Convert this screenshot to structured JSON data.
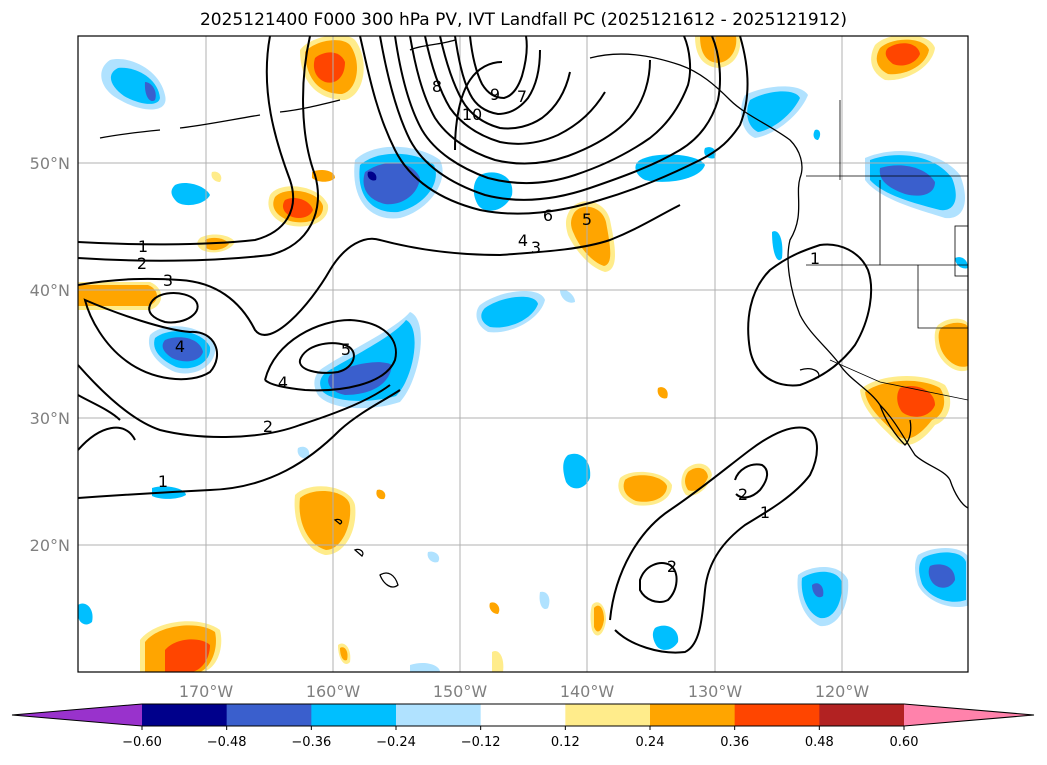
{
  "title": "2025121400 F000 300 hPa PV, IVT Landfall PC (2025121612 - 2025121912)",
  "map": {
    "lat_labels": [
      "50°N",
      "40°N",
      "30°N",
      "20°N"
    ],
    "lon_labels": [
      "170°W",
      "160°W",
      "150°W",
      "140°W",
      "130°W",
      "120°W"
    ]
  },
  "contour_labels": [
    "1",
    "2",
    "3",
    "4",
    "5",
    "6",
    "7",
    "8",
    "9",
    "10",
    "4",
    "3",
    "5",
    "4",
    "2",
    "1",
    "1",
    "2",
    "1",
    "2"
  ],
  "colorbar": {
    "ticks": [
      "−0.60",
      "−0.48",
      "−0.36",
      "−0.24",
      "−0.12",
      "0.12",
      "0.24",
      "0.36",
      "0.48",
      "0.60"
    ],
    "colors": [
      "#9932cc",
      "#00008b",
      "#3a5fcd",
      "#00bfff",
      "#b0e2ff",
      "#ffffff",
      "#ffec8b",
      "#ffa500",
      "#ff4500",
      "#b22222",
      "#ff82ab"
    ]
  },
  "chart_data": {
    "type": "heatmap",
    "title": "2025121400 F000 300 hPa PV, IVT Landfall PC (2025121612 - 2025121912)",
    "lon_range": [
      -180,
      -110
    ],
    "lat_range": [
      10,
      60
    ],
    "grid": true,
    "colorbar_levels": [
      -0.6,
      -0.48,
      -0.36,
      -0.24,
      -0.12,
      0.12,
      0.24,
      0.36,
      0.48,
      0.6
    ],
    "contour_levels": [
      1,
      2,
      3,
      4,
      5,
      6,
      7,
      8,
      9,
      10
    ]
  }
}
